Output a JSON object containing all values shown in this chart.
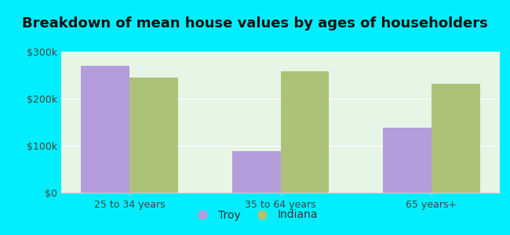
{
  "title": "Breakdown of mean house values by ages of householders",
  "categories": [
    "25 to 34 years",
    "35 to 64 years",
    "65 years+"
  ],
  "troy_values": [
    270000,
    88000,
    138000
  ],
  "indiana_values": [
    245000,
    258000,
    232000
  ],
  "troy_color": "#b39ddb",
  "indiana_color": "#adc178",
  "background_outer": "#00eeff",
  "background_inner": "#e6f5e6",
  "ylim": [
    0,
    300000
  ],
  "yticks": [
    0,
    100000,
    200000,
    300000
  ],
  "ytick_labels": [
    "$0",
    "$100k",
    "$200k",
    "$300k"
  ],
  "legend_troy": "Troy",
  "legend_indiana": "Indiana",
  "bar_width": 0.32,
  "title_fontsize": 13,
  "tick_fontsize": 9,
  "legend_fontsize": 10
}
